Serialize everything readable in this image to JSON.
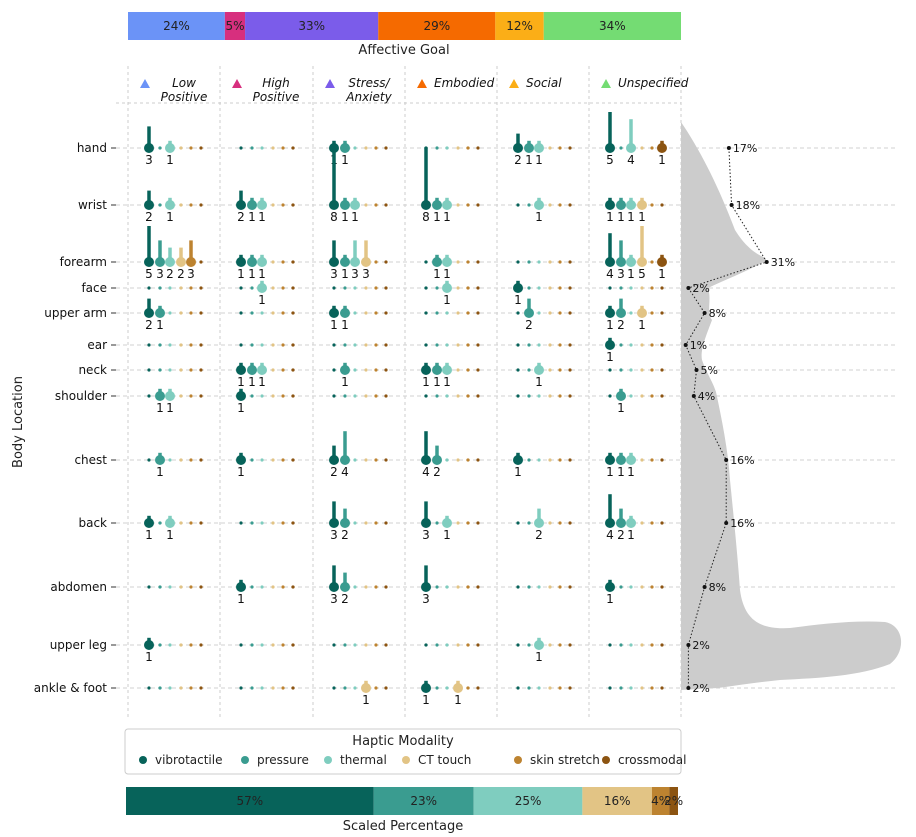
{
  "chart_data": {
    "type": "scatter",
    "top_bar": {
      "title": "Affective Goal",
      "segments": [
        {
          "label": "24%",
          "value": 24,
          "color": "#6b93f7"
        },
        {
          "label": "5%",
          "value": 5,
          "color": "#d72f7e"
        },
        {
          "label": "33%",
          "value": 33,
          "color": "#7b5cea"
        },
        {
          "label": "29%",
          "value": 29,
          "color": "#f56a00"
        },
        {
          "label": "12%",
          "value": 12,
          "color": "#fbae17"
        },
        {
          "label": "34%",
          "value": 34,
          "color": "#74dc73"
        }
      ]
    },
    "goals": [
      {
        "name": "Low\nPositive",
        "color": "#6b93f7"
      },
      {
        "name": "High\nPositive",
        "color": "#d72f7e"
      },
      {
        "name": "Stress/\nAnxiety",
        "color": "#7b5cea"
      },
      {
        "name": "Embodied",
        "color": "#f56a00"
      },
      {
        "name": "Social",
        "color": "#fbae17"
      },
      {
        "name": "Unspecified",
        "color": "#74dc73"
      }
    ],
    "ylabel": "Body Location",
    "body_locations": [
      "hand",
      "wrist",
      "forearm",
      "face",
      "upper arm",
      "ear",
      "neck",
      "shoulder",
      "chest",
      "back",
      "abdomen",
      "upper leg",
      "ankle & foot"
    ],
    "body_percentages": [
      {
        "location": "hand",
        "label": "17%",
        "value": 17
      },
      {
        "location": "wrist",
        "label": "18%",
        "value": 18
      },
      {
        "location": "forearm",
        "label": "31%",
        "value": 31
      },
      {
        "location": "face",
        "label": "2%",
        "value": 2
      },
      {
        "location": "upper arm",
        "label": "8%",
        "value": 8
      },
      {
        "location": "ear",
        "label": "1%",
        "value": 1
      },
      {
        "location": "neck",
        "label": "5%",
        "value": 5
      },
      {
        "location": "shoulder",
        "label": "4%",
        "value": 4
      },
      {
        "location": "chest",
        "label": "16%",
        "value": 16
      },
      {
        "location": "back",
        "label": "16%",
        "value": 16
      },
      {
        "location": "abdomen",
        "label": "8%",
        "value": 8
      },
      {
        "location": "upper leg",
        "label": "2%",
        "value": 2
      },
      {
        "location": "ankle & foot",
        "label": "2%",
        "value": 2
      }
    ],
    "modalities": [
      {
        "name": "vibrotactile",
        "color": "#07635a"
      },
      {
        "name": "pressure",
        "color": "#3a9c90"
      },
      {
        "name": "thermal",
        "color": "#7fcdbf"
      },
      {
        "name": "CT touch",
        "color": "#e2c485"
      },
      {
        "name": "skin stretch",
        "color": "#bd8330"
      },
      {
        "name": "crossmodal",
        "color": "#8c5411"
      }
    ],
    "legend_title": "Haptic Modality",
    "counts": [
      [
        [
          3,
          0,
          1,
          0,
          0,
          0
        ],
        [
          0,
          0,
          0,
          0,
          0,
          0
        ],
        [
          1,
          1,
          0,
          0,
          0,
          0
        ],
        [
          0,
          0,
          0,
          0,
          0,
          0
        ],
        [
          2,
          1,
          1,
          0,
          0,
          0
        ],
        [
          5,
          0,
          4,
          0,
          0,
          1
        ]
      ],
      [
        [
          2,
          0,
          1,
          0,
          0,
          0
        ],
        [
          2,
          1,
          1,
          0,
          0,
          0
        ],
        [
          8,
          1,
          1,
          0,
          0,
          0
        ],
        [
          8,
          1,
          1,
          0,
          0,
          0
        ],
        [
          0,
          0,
          1,
          0,
          0,
          0
        ],
        [
          1,
          1,
          1,
          1,
          0,
          0
        ]
      ],
      [
        [
          5,
          3,
          2,
          2,
          3,
          0
        ],
        [
          1,
          1,
          1,
          0,
          0,
          0
        ],
        [
          3,
          1,
          3,
          3,
          0,
          0
        ],
        [
          0,
          1,
          1,
          0,
          0,
          0
        ],
        [
          0,
          0,
          0,
          0,
          0,
          0
        ],
        [
          4,
          3,
          1,
          5,
          0,
          1
        ]
      ],
      [
        [
          0,
          0,
          0,
          0,
          0,
          0
        ],
        [
          0,
          0,
          1,
          0,
          0,
          0
        ],
        [
          0,
          0,
          0,
          0,
          0,
          0
        ],
        [
          0,
          0,
          1,
          0,
          0,
          0
        ],
        [
          1,
          0,
          0,
          0,
          0,
          0
        ],
        [
          0,
          0,
          0,
          0,
          0,
          0
        ]
      ],
      [
        [
          2,
          1,
          0,
          0,
          0,
          0
        ],
        [
          0,
          0,
          0,
          0,
          0,
          0
        ],
        [
          1,
          1,
          0,
          0,
          0,
          0
        ],
        [
          0,
          0,
          0,
          0,
          0,
          0
        ],
        [
          0,
          2,
          0,
          0,
          0,
          0
        ],
        [
          1,
          2,
          0,
          1,
          0,
          0
        ]
      ],
      [
        [
          0,
          0,
          0,
          0,
          0,
          0
        ],
        [
          0,
          0,
          0,
          0,
          0,
          0
        ],
        [
          0,
          0,
          0,
          0,
          0,
          0
        ],
        [
          0,
          0,
          0,
          0,
          0,
          0
        ],
        [
          0,
          0,
          0,
          0,
          0,
          0
        ],
        [
          1,
          0,
          0,
          0,
          0,
          0
        ]
      ],
      [
        [
          0,
          0,
          0,
          0,
          0,
          0
        ],
        [
          1,
          1,
          1,
          0,
          0,
          0
        ],
        [
          0,
          1,
          0,
          0,
          0,
          0
        ],
        [
          1,
          1,
          1,
          0,
          0,
          0
        ],
        [
          0,
          0,
          1,
          0,
          0,
          0
        ],
        [
          0,
          0,
          0,
          0,
          0,
          0
        ]
      ],
      [
        [
          0,
          1,
          1,
          0,
          0,
          0
        ],
        [
          1,
          0,
          0,
          0,
          0,
          0
        ],
        [
          0,
          0,
          0,
          0,
          0,
          0
        ],
        [
          0,
          0,
          0,
          0,
          0,
          0
        ],
        [
          0,
          0,
          0,
          0,
          0,
          0
        ],
        [
          0,
          1,
          0,
          0,
          0,
          0
        ]
      ],
      [
        [
          0,
          1,
          0,
          0,
          0,
          0
        ],
        [
          1,
          0,
          0,
          0,
          0,
          0
        ],
        [
          2,
          4,
          0,
          0,
          0,
          0
        ],
        [
          4,
          2,
          0,
          0,
          0,
          0
        ],
        [
          1,
          0,
          0,
          0,
          0,
          0
        ],
        [
          1,
          1,
          1,
          0,
          0,
          0
        ]
      ],
      [
        [
          1,
          0,
          1,
          0,
          0,
          0
        ],
        [
          0,
          0,
          0,
          0,
          0,
          0
        ],
        [
          3,
          2,
          0,
          0,
          0,
          0
        ],
        [
          3,
          0,
          1,
          0,
          0,
          0
        ],
        [
          0,
          0,
          2,
          0,
          0,
          0
        ],
        [
          4,
          2,
          1,
          0,
          0,
          0
        ]
      ],
      [
        [
          0,
          0,
          0,
          0,
          0,
          0
        ],
        [
          1,
          0,
          0,
          0,
          0,
          0
        ],
        [
          3,
          2,
          0,
          0,
          0,
          0
        ],
        [
          3,
          0,
          0,
          0,
          0,
          0
        ],
        [
          0,
          0,
          0,
          0,
          0,
          0
        ],
        [
          1,
          0,
          0,
          0,
          0,
          0
        ]
      ],
      [
        [
          1,
          0,
          0,
          0,
          0,
          0
        ],
        [
          0,
          0,
          0,
          0,
          0,
          0
        ],
        [
          0,
          0,
          0,
          0,
          0,
          0
        ],
        [
          0,
          0,
          0,
          0,
          0,
          0
        ],
        [
          0,
          0,
          1,
          0,
          0,
          0
        ],
        [
          0,
          0,
          0,
          0,
          0,
          0
        ]
      ],
      [
        [
          0,
          0,
          0,
          0,
          0,
          0
        ],
        [
          0,
          0,
          0,
          0,
          0,
          0
        ],
        [
          0,
          0,
          0,
          1,
          0,
          0
        ],
        [
          1,
          0,
          0,
          1,
          0,
          0
        ],
        [
          0,
          0,
          0,
          0,
          0,
          0
        ],
        [
          0,
          0,
          0,
          0,
          0,
          0
        ]
      ]
    ],
    "bottom_bar": {
      "title": "Scaled Percentage",
      "segments": [
        {
          "label": "57%",
          "value": 57,
          "color": "#07635a"
        },
        {
          "label": "23%",
          "value": 23,
          "color": "#3a9c90"
        },
        {
          "label": "25%",
          "value": 25,
          "color": "#7fcdbf"
        },
        {
          "label": "16%",
          "value": 16,
          "color": "#e2c485"
        },
        {
          "label": "4%",
          "value": 4,
          "color": "#bd8330"
        },
        {
          "label": "2%",
          "value": 2,
          "color": "#8c5411"
        }
      ]
    },
    "grid": true,
    "legend_position": "bottom"
  }
}
